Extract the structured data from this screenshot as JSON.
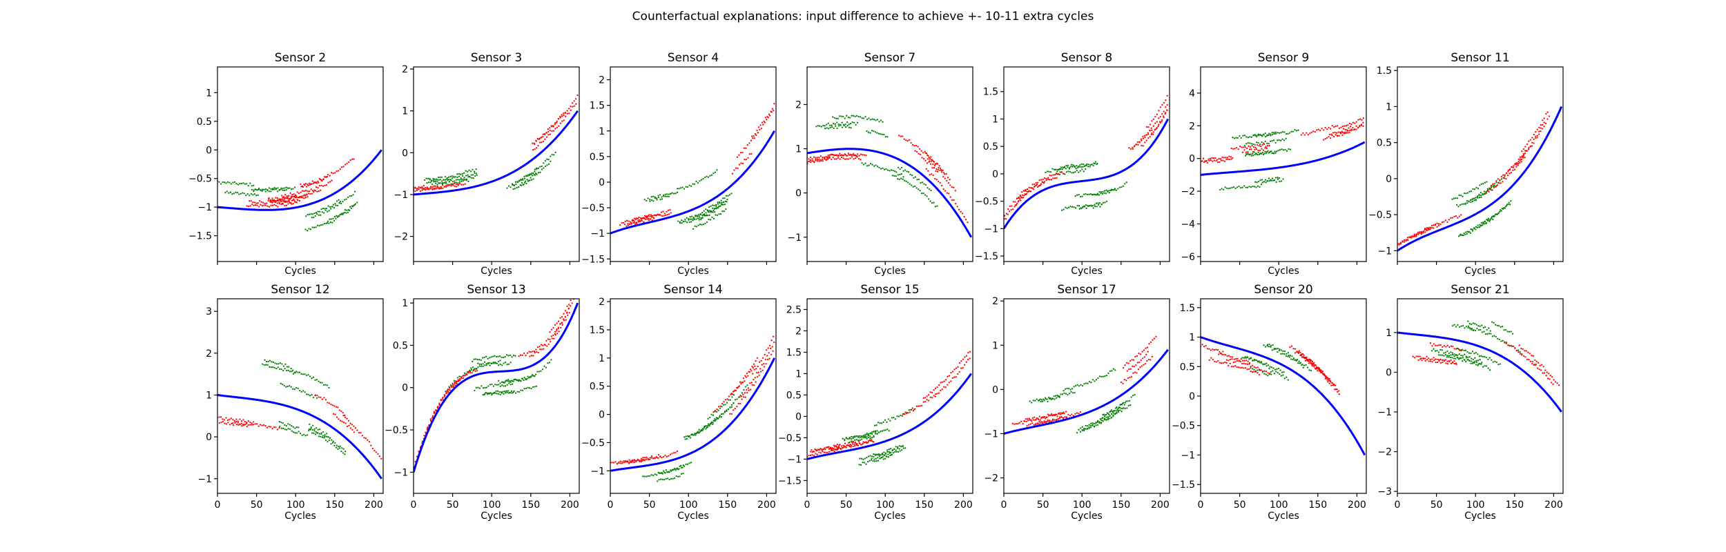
{
  "figure": {
    "title": "Counterfactual explanations: input difference to achieve +- 10-11 extra cycles",
    "xlabel": "Cycles"
  },
  "chart_data": {
    "type": "scatter",
    "colors": {
      "baseline": "#0000ff",
      "increase": "#008000",
      "decrease": "#ff0000"
    },
    "x_range": [
      0,
      212
    ],
    "x_ticks": [
      0,
      50,
      100,
      150,
      200
    ],
    "panels": [
      {
        "title": "Sensor 2",
        "ylim": [
          -1.95,
          1.45
        ],
        "yticks": [
          -1.5,
          -1.0,
          -0.5,
          0.0,
          0.5,
          1.0
        ],
        "poly": [
          -1.0,
          -0.2,
          -0.35,
          1.55
        ],
        "up": [
          [
            0.2,
            0.45
          ],
          [
            0.65,
            -0.4
          ]
        ],
        "down": [
          [
            0.3,
            0.15
          ],
          [
            0.55,
            0.3
          ]
        ]
      },
      {
        "title": "Sensor 3",
        "ylim": [
          -2.6,
          2.05
        ],
        "yticks": [
          -2,
          -1,
          0,
          1,
          2
        ],
        "poly": [
          -1.0,
          0.35,
          -0.3,
          1.95
        ],
        "up": [
          [
            0.3,
            0.25
          ],
          [
            0.7,
            -0.3
          ]
        ],
        "down": [
          [
            0.15,
            0.1
          ],
          [
            0.8,
            0.25
          ]
        ]
      },
      {
        "title": "Sensor 4",
        "ylim": [
          -1.55,
          2.25
        ],
        "yticks": [
          -1.5,
          -1.0,
          -0.5,
          0.0,
          0.5,
          1.0,
          1.5,
          2.0
        ],
        "poly": [
          -1.0,
          1.2,
          -1.9,
          2.7
        ],
        "up": [
          [
            0.4,
            0.35
          ],
          [
            0.55,
            -0.25
          ]
        ],
        "down": [
          [
            0.15,
            0.1
          ],
          [
            0.9,
            0.35
          ]
        ]
      },
      {
        "title": "Sensor 7",
        "ylim": [
          -1.55,
          2.85
        ],
        "yticks": [
          -1,
          0,
          1,
          2
        ],
        "poly": [
          0.9,
          0.6,
          -0.3,
          -2.2
        ],
        "up": [
          [
            0.3,
            0.45
          ],
          [
            0.6,
            -0.25
          ]
        ],
        "down": [
          [
            0.2,
            -0.2
          ],
          [
            0.8,
            0.3
          ]
        ]
      },
      {
        "title": "Sensor 8",
        "ylim": [
          -1.6,
          1.95
        ],
        "yticks": [
          -1.5,
          -1.0,
          -0.5,
          0.0,
          0.5,
          1.0,
          1.5
        ],
        "poly": [
          -1.0,
          4.8,
          -9.4,
          6.6
        ],
        "up": [
          [
            0.35,
            0.3
          ],
          [
            0.55,
            -0.35
          ]
        ],
        "down": [
          [
            0.15,
            0.2
          ],
          [
            0.9,
            0.35
          ]
        ]
      },
      {
        "title": "Sensor 9",
        "ylim": [
          -6.3,
          5.6
        ],
        "yticks": [
          -6,
          -4,
          -2,
          0,
          2,
          4
        ],
        "poly": [
          -1.0,
          1.0,
          -1.2,
          2.2
        ],
        "up": [
          [
            0.45,
            0.5
          ],
          [
            0.35,
            -0.4
          ]
        ],
        "down": [
          [
            0.2,
            0.3
          ],
          [
            0.8,
            0.4
          ]
        ]
      },
      {
        "title": "Sensor 11",
        "ylim": [
          -1.15,
          1.55
        ],
        "yticks": [
          -1.0,
          -0.5,
          0.0,
          0.5,
          1.0,
          1.5
        ],
        "poly": [
          -1.0,
          1.5,
          -2.2,
          2.7
        ],
        "up": [
          [
            0.4,
            0.35
          ],
          [
            0.6,
            -0.25
          ]
        ],
        "down": [
          [
            0.2,
            0.15
          ],
          [
            0.8,
            0.3
          ]
        ]
      },
      {
        "title": "Sensor 12",
        "ylim": [
          -1.35,
          3.3
        ],
        "yticks": [
          -1,
          0,
          1,
          2,
          3
        ],
        "poly": [
          1.0,
          -0.5,
          0.6,
          -2.1
        ],
        "up": [
          [
            0.45,
            0.55
          ],
          [
            0.55,
            -0.3
          ]
        ],
        "down": [
          [
            0.2,
            -0.45
          ],
          [
            0.8,
            0.3
          ]
        ]
      },
      {
        "title": "Sensor 13",
        "ylim": [
          -1.25,
          1.05
        ],
        "yticks": [
          -1.0,
          -0.5,
          0.0,
          0.5,
          1.0
        ],
        "poly": [
          -1.0,
          6.5,
          -12.0,
          7.5
        ],
        "up": [
          [
            0.35,
            0.2
          ],
          [
            0.55,
            -0.3
          ]
        ],
        "down": [
          [
            0.2,
            0.1
          ],
          [
            0.9,
            0.35
          ]
        ]
      },
      {
        "title": "Sensor 14",
        "ylim": [
          -1.4,
          2.05
        ],
        "yticks": [
          -1.0,
          -0.5,
          0.0,
          0.5,
          1.0,
          1.5,
          2.0
        ],
        "poly": [
          -1.0,
          0.5,
          -0.9,
          2.4
        ],
        "up": [
          [
            0.55,
            0.35
          ],
          [
            0.45,
            -0.25
          ]
        ],
        "down": [
          [
            0.15,
            0.1
          ],
          [
            0.9,
            0.4
          ]
        ]
      },
      {
        "title": "Sensor 15",
        "ylim": [
          -1.8,
          2.75
        ],
        "yticks": [
          -1.5,
          -1.0,
          -0.5,
          0.0,
          0.5,
          1.0,
          1.5,
          2.0,
          2.5
        ],
        "poly": [
          -1.0,
          1.0,
          -1.4,
          2.4
        ],
        "up": [
          [
            0.45,
            0.3
          ],
          [
            0.55,
            -0.35
          ]
        ],
        "down": [
          [
            0.2,
            0.1
          ],
          [
            0.8,
            0.35
          ]
        ]
      },
      {
        "title": "Sensor 17",
        "ylim": [
          -2.35,
          2.05
        ],
        "yticks": [
          -2,
          -1,
          0,
          1,
          2
        ],
        "poly": [
          -1.0,
          1.0,
          -1.2,
          2.1
        ],
        "up": [
          [
            0.4,
            0.4
          ],
          [
            0.6,
            -0.25
          ]
        ],
        "down": [
          [
            0.2,
            0.1
          ],
          [
            0.8,
            0.4
          ]
        ]
      },
      {
        "title": "Sensor 20",
        "ylim": [
          -1.65,
          1.65
        ],
        "yticks": [
          -1.5,
          -1.0,
          -0.5,
          0.0,
          0.5,
          1.0,
          1.5
        ],
        "poly": [
          1.0,
          -1.0,
          1.2,
          -2.2
        ],
        "up": [
          [
            0.55,
            0.35
          ],
          [
            0.45,
            -0.25
          ]
        ],
        "down": [
          [
            0.2,
            -0.3
          ],
          [
            0.8,
            0.3
          ]
        ]
      },
      {
        "title": "Sensor 21",
        "ylim": [
          -3.05,
          1.85
        ],
        "yticks": [
          -3,
          -2,
          -1,
          0,
          1
        ],
        "poly": [
          1.0,
          -0.5,
          0.7,
          -2.2
        ],
        "up": [
          [
            0.5,
            0.4
          ],
          [
            0.5,
            -0.25
          ]
        ],
        "down": [
          [
            0.2,
            -0.3
          ],
          [
            0.8,
            0.35
          ]
        ]
      }
    ]
  }
}
